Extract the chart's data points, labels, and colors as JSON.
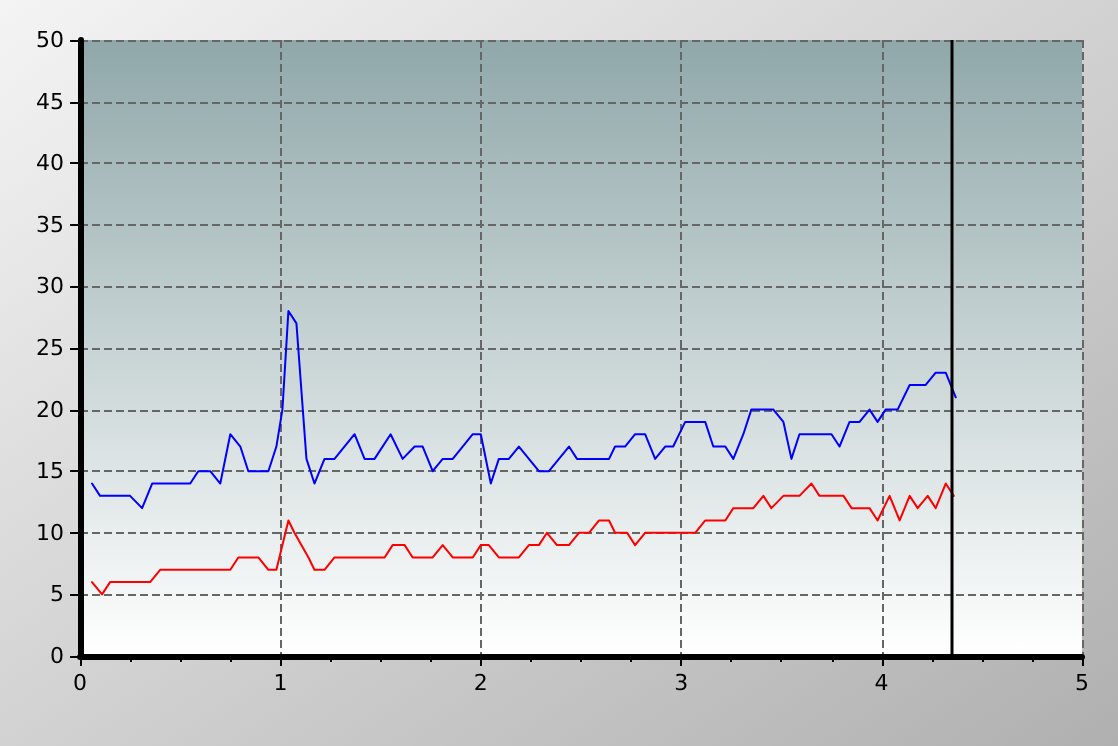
{
  "chart_data": {
    "type": "line",
    "xlim": [
      0,
      5
    ],
    "xticks": [
      0,
      1,
      2,
      3,
      4,
      5
    ],
    "ylim": [
      0,
      50
    ],
    "yticks": [
      0,
      5,
      10,
      15,
      20,
      25,
      30,
      35,
      40,
      45,
      50
    ],
    "grid": true,
    "marker": "none",
    "line_style": "solid",
    "series": [
      {
        "color": "#0000ff",
        "x": [
          0.06,
          0.1,
          0.25,
          0.31,
          0.36,
          0.55,
          0.59,
          0.65,
          0.7,
          0.75,
          0.8,
          0.84,
          0.94,
          0.98,
          1.01,
          1.04,
          1.08,
          1.13,
          1.17,
          1.22,
          1.27,
          1.37,
          1.42,
          1.47,
          1.55,
          1.61,
          1.67,
          1.71,
          1.76,
          1.81,
          1.86,
          1.96,
          2.0,
          2.05,
          2.09,
          2.14,
          2.19,
          2.29,
          2.34,
          2.44,
          2.48,
          2.64,
          2.67,
          2.72,
          2.77,
          2.82,
          2.87,
          2.92,
          2.96,
          3.02,
          3.12,
          3.16,
          3.22,
          3.26,
          3.31,
          3.35,
          3.46,
          3.51,
          3.55,
          3.59,
          3.75,
          3.79,
          3.84,
          3.89,
          3.94,
          3.98,
          4.02,
          4.08,
          4.14,
          4.22,
          4.27,
          4.32,
          4.37
        ],
        "values": [
          14,
          13,
          13,
          12,
          14,
          14,
          15,
          15,
          14,
          18,
          17,
          15,
          15,
          17,
          20,
          28,
          27,
          16,
          14,
          16,
          16,
          18,
          16,
          16,
          18,
          16,
          17,
          17,
          15,
          16,
          16,
          18,
          18,
          14,
          16,
          16,
          17,
          15,
          15,
          17,
          16,
          16,
          17,
          17,
          18,
          18,
          16,
          17,
          17,
          19,
          19,
          17,
          17,
          16,
          18,
          20,
          20,
          19,
          16,
          18,
          18,
          17,
          19,
          19,
          20,
          19,
          20,
          20,
          22,
          22,
          23,
          23,
          21
        ]
      },
      {
        "color": "#ff0000",
        "x": [
          0.06,
          0.11,
          0.15,
          0.35,
          0.4,
          0.75,
          0.79,
          0.89,
          0.94,
          0.98,
          1.04,
          1.07,
          1.14,
          1.17,
          1.22,
          1.27,
          1.52,
          1.56,
          1.62,
          1.66,
          1.76,
          1.81,
          1.86,
          1.96,
          2.0,
          2.04,
          2.09,
          2.19,
          2.24,
          2.29,
          2.33,
          2.38,
          2.44,
          2.49,
          2.54,
          2.59,
          2.64,
          2.67,
          2.73,
          2.77,
          2.82,
          3.07,
          3.12,
          3.22,
          3.26,
          3.36,
          3.41,
          3.45,
          3.51,
          3.59,
          3.65,
          3.69,
          3.81,
          3.85,
          3.94,
          3.98,
          4.04,
          4.09,
          4.14,
          4.18,
          4.23,
          4.27,
          4.32,
          4.36
        ],
        "values": [
          6,
          5,
          6,
          6,
          7,
          7,
          8,
          8,
          7,
          7,
          11,
          10,
          8,
          7,
          7,
          8,
          8,
          9,
          9,
          8,
          8,
          9,
          8,
          8,
          9,
          9,
          8,
          8,
          9,
          9,
          10,
          9,
          9,
          10,
          10,
          11,
          11,
          10,
          10,
          9,
          10,
          10,
          11,
          11,
          12,
          12,
          13,
          12,
          13,
          13,
          14,
          13,
          13,
          12,
          12,
          11,
          13,
          11,
          13,
          12,
          13,
          12,
          14,
          13
        ]
      }
    ],
    "ref_lines": [
      {
        "axis": "x",
        "value": 4.35,
        "color": "#000000",
        "line_style": "solid"
      }
    ]
  }
}
